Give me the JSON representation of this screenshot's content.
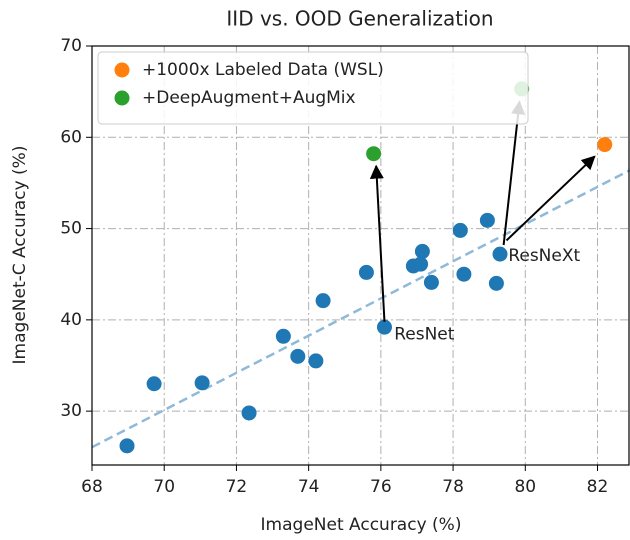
{
  "chart_data": {
    "type": "scatter",
    "title": "IID vs. OOD Generalization",
    "xlabel": "ImageNet Accuracy (%)",
    "ylabel": "ImageNet-C Accuracy (%)",
    "xlim": [
      68,
      82.9
    ],
    "ylim": [
      24.1,
      70
    ],
    "xticks": [
      68,
      70,
      72,
      74,
      76,
      78,
      80,
      82
    ],
    "yticks": [
      30,
      40,
      50,
      60,
      70
    ],
    "grid": true,
    "legend": "upper left",
    "series": [
      {
        "color": "#1f77b4",
        "x": [
          68.97,
          69.72,
          71.05,
          72.35,
          73.3,
          73.7,
          74.2,
          74.4,
          75.6,
          76.1,
          76.9,
          77.1,
          77.15,
          77.4,
          78.2,
          78.3,
          78.95,
          79.2,
          79.3
        ],
        "values": [
          26.2,
          33.0,
          33.1,
          29.8,
          38.2,
          36.0,
          35.5,
          42.1,
          45.2,
          39.2,
          45.9,
          46.1,
          47.5,
          44.1,
          49.8,
          45.0,
          50.9,
          44.0,
          47.2
        ]
      },
      {
        "name": "+1000x Labeled Data (WSL)",
        "color": "#ff7f0e",
        "x": [
          82.2
        ],
        "values": [
          59.2
        ]
      },
      {
        "name": "+DeepAugment+AugMix",
        "color": "#2ca02c",
        "x": [
          75.8,
          79.9
        ],
        "values": [
          58.2,
          65.3
        ]
      }
    ],
    "fit_line": {
      "color": "#8fb9d8",
      "x": [
        68,
        82.9
      ],
      "values": [
        26.05,
        56.4
      ]
    },
    "annotations": [
      {
        "text": "ResNet",
        "x": 76.37,
        "y": 38.4
      },
      {
        "text": "ResNeXt",
        "x": 79.53,
        "y": 47.0
      }
    ],
    "arrows": [
      {
        "from": [
          76.1,
          39.8
        ],
        "to": [
          75.87,
          56.85
        ]
      },
      {
        "from": [
          79.4,
          48.2
        ],
        "to": [
          79.84,
          63.9
        ]
      },
      {
        "from": [
          79.48,
          48.7
        ],
        "to": [
          81.92,
          57.9
        ]
      }
    ]
  }
}
